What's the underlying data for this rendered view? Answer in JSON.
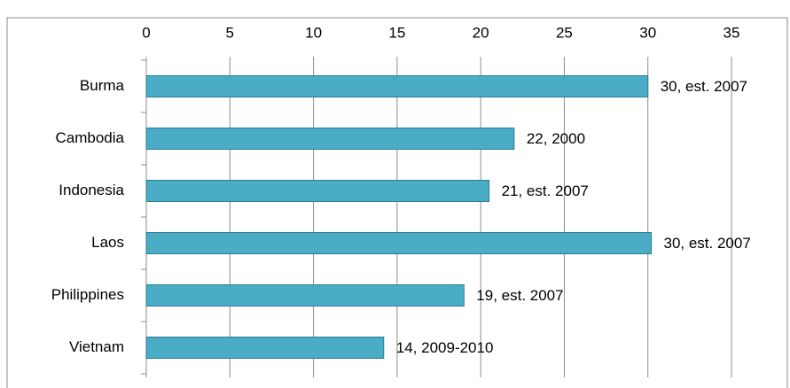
{
  "chart_data": {
    "type": "bar",
    "orientation": "horizontal",
    "categories": [
      "Burma",
      "Cambodia",
      "Indonesia",
      "Laos",
      "Philippines",
      "Vietnam"
    ],
    "values": [
      30,
      22,
      20.5,
      30.2,
      19,
      14.2
    ],
    "value_labels": [
      "30, est. 2007",
      "22, 2000",
      "21, est. 2007",
      "30, est. 2007",
      "19, est. 2007",
      "14, 2009-2010"
    ],
    "color": "#4bacc6",
    "xlim": [
      0,
      35
    ],
    "xticks": [
      0,
      5,
      10,
      15,
      20,
      25,
      30,
      35
    ],
    "grid": true
  }
}
